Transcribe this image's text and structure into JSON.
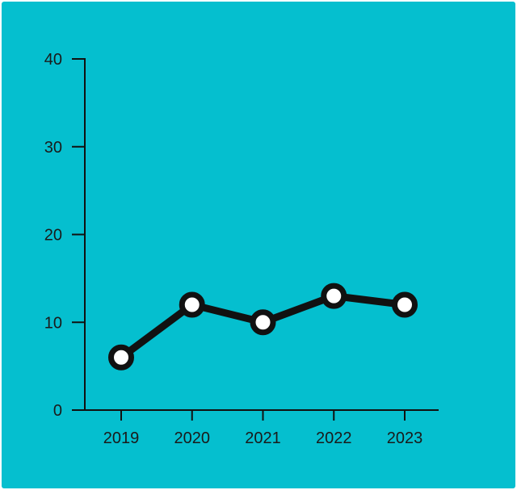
{
  "chart_data": {
    "type": "line",
    "title": "",
    "xlabel": "",
    "ylabel": "",
    "categories": [
      "2019",
      "2020",
      "2021",
      "2022",
      "2023"
    ],
    "series": [
      {
        "values": [
          6,
          12,
          10,
          13,
          12
        ]
      }
    ],
    "ylim": [
      0,
      40
    ],
    "yticks": [
      "0",
      "10",
      "20",
      "30",
      "40"
    ],
    "grid": false,
    "legend": "none"
  },
  "colors": {
    "background": "#05bfcf",
    "line": "#111111",
    "marker_fill": "#ffffff",
    "axis": "#111111",
    "text": "#1a1a1a"
  }
}
